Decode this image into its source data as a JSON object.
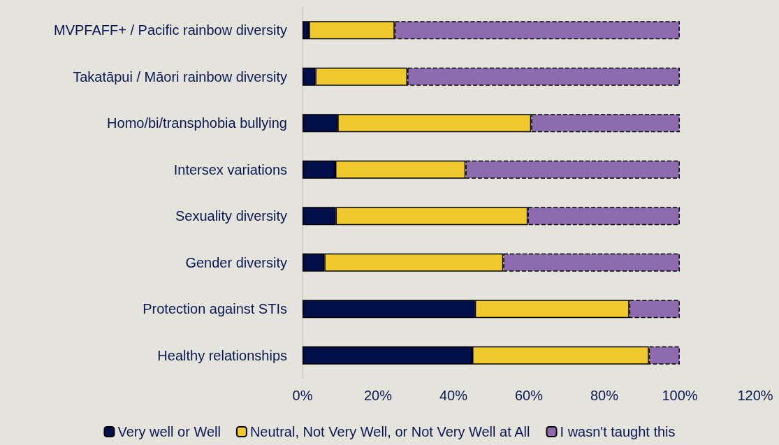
{
  "chart_data": {
    "type": "bar",
    "orientation": "horizontal",
    "stacked": true,
    "categories": [
      "MVPFAFF+ / Pacific rainbow diversity",
      "Takatāpui / Māori rainbow diversity",
      "Homo/bi/transphobia bullying",
      "Intersex variations",
      "Sexuality diversity",
      "Gender diversity",
      "Protection against STIs",
      "Healthy relationships"
    ],
    "series": [
      {
        "name": "Very well or Well",
        "color": "#000e4a",
        "values": [
          1.7,
          3.4,
          9.3,
          8.7,
          8.8,
          5.8,
          45.7,
          45
        ]
      },
      {
        "name": "Neutral, Not Very Well, or Not Very Well at All",
        "color": "#efc92d",
        "values": [
          22.7,
          24.4,
          51.3,
          34.5,
          50.9,
          47.4,
          40.9,
          46.8
        ]
      },
      {
        "name": "I wasn't taught this",
        "color": "#8c6cae",
        "line_style": "dashed",
        "values": [
          75.6,
          72.2,
          39.4,
          56.8,
          40.3,
          46.8,
          13.4,
          8.2
        ]
      }
    ],
    "xlim": [
      0,
      120
    ],
    "xticks": [
      {
        "value": 0,
        "label": "0%"
      },
      {
        "value": 20,
        "label": "20%"
      },
      {
        "value": 40,
        "label": "40%"
      },
      {
        "value": 60,
        "label": "60%"
      },
      {
        "value": 80,
        "label": "80%"
      },
      {
        "value": 100,
        "label": "100%"
      },
      {
        "value": 120,
        "label": "120%"
      }
    ],
    "grid": false,
    "legend": "bottom"
  }
}
